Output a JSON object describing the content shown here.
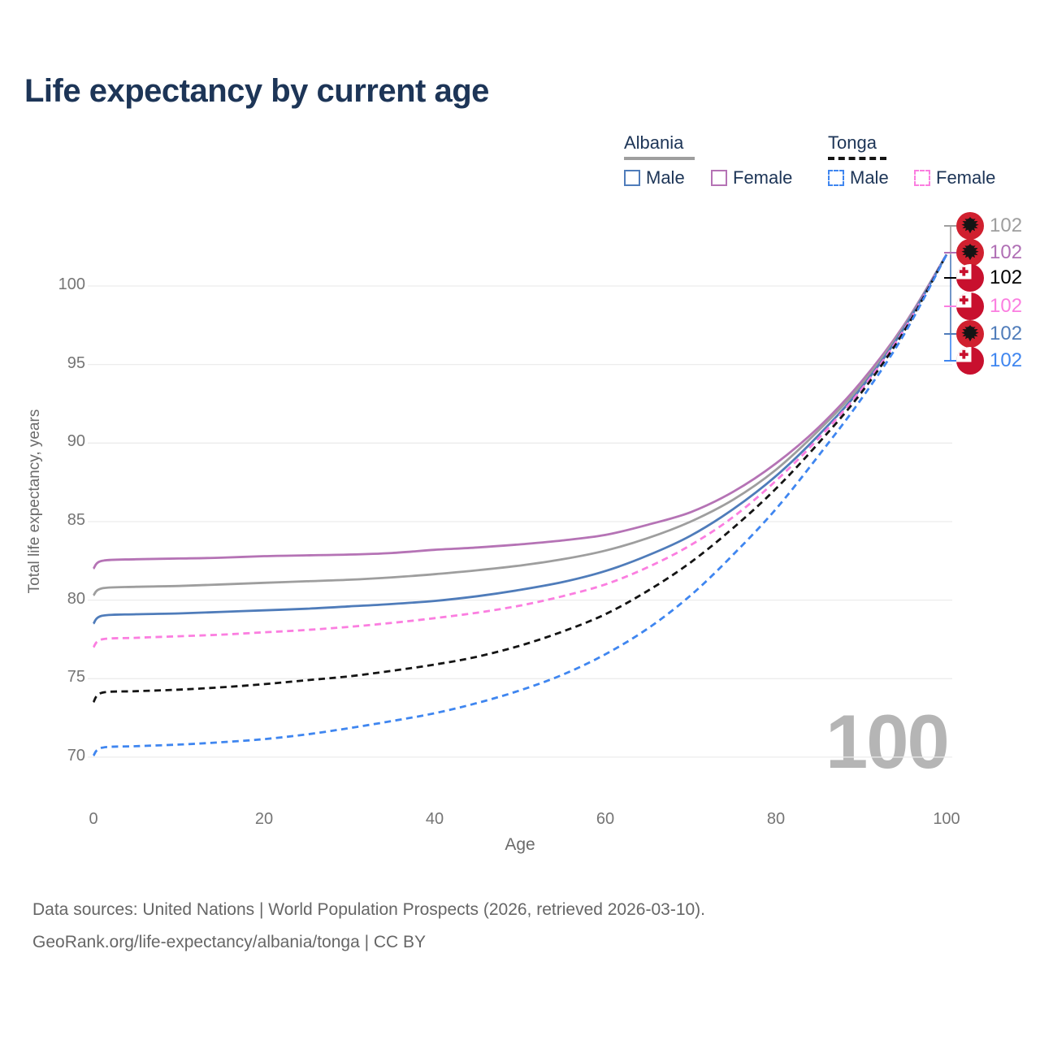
{
  "page": {
    "title": "Life expectancy by current age"
  },
  "legend": {
    "groups": [
      {
        "title": "Albania",
        "line_style": "solid",
        "line_color": "#9e9e9e",
        "items": [
          {
            "label": "Male",
            "color": "#4f7cba"
          },
          {
            "label": "Female",
            "color": "#b573b5"
          }
        ]
      },
      {
        "title": "Tonga",
        "line_style": "dashed",
        "line_color": "#141414",
        "items": [
          {
            "label": "Male",
            "color": "#3f86f0"
          },
          {
            "label": "Female",
            "color": "#fb7ee0"
          }
        ]
      }
    ]
  },
  "chart": {
    "y_axis_title": "Total life expectancy, years",
    "x_axis_title": "Age",
    "watermark": "100"
  },
  "chart_data": {
    "type": "line",
    "title": "Life expectancy by current age",
    "xlabel": "Age",
    "ylabel": "Total life expectancy, years",
    "xlim": [
      0,
      100
    ],
    "ylim": [
      68.5,
      103.5
    ],
    "x_ticks": [
      0,
      20,
      40,
      60,
      80,
      100
    ],
    "y_ticks": [
      70,
      75,
      80,
      85,
      90,
      95,
      100
    ],
    "grid": "horizontal",
    "x": [
      0,
      1,
      5,
      10,
      15,
      20,
      25,
      30,
      35,
      40,
      45,
      50,
      55,
      60,
      65,
      70,
      75,
      80,
      85,
      90,
      95,
      100
    ],
    "series": [
      {
        "name": "Albania Female",
        "country": "Albania",
        "sex": "Female",
        "color": "#b573b5",
        "dash": false,
        "values": [
          82.0,
          82.5,
          82.6,
          82.65,
          82.7,
          82.8,
          82.85,
          82.9,
          83.0,
          83.2,
          83.35,
          83.55,
          83.8,
          84.15,
          84.8,
          85.6,
          86.9,
          88.7,
          91.0,
          93.9,
          97.5,
          102
        ]
      },
      {
        "name": "Albania Both sexes",
        "country": "Albania",
        "sex": "All",
        "color": "#9e9e9e",
        "dash": false,
        "values": [
          80.3,
          80.75,
          80.85,
          80.9,
          81.0,
          81.1,
          81.2,
          81.3,
          81.45,
          81.65,
          81.9,
          82.2,
          82.6,
          83.15,
          83.95,
          85.0,
          86.4,
          88.3,
          90.8,
          93.7,
          97.4,
          102
        ]
      },
      {
        "name": "Albania Male",
        "country": "Albania",
        "sex": "Male",
        "color": "#4f7cba",
        "dash": false,
        "values": [
          78.5,
          79.0,
          79.1,
          79.15,
          79.25,
          79.35,
          79.45,
          79.6,
          79.75,
          79.95,
          80.25,
          80.65,
          81.15,
          81.85,
          82.85,
          84.1,
          85.8,
          87.9,
          90.5,
          93.5,
          97.3,
          102
        ]
      },
      {
        "name": "Tonga Female",
        "country": "Tonga",
        "sex": "Female",
        "color": "#fb7ee0",
        "dash": true,
        "values": [
          77.0,
          77.5,
          77.6,
          77.7,
          77.8,
          77.95,
          78.1,
          78.3,
          78.55,
          78.85,
          79.2,
          79.65,
          80.25,
          81.0,
          82.1,
          83.5,
          85.3,
          87.6,
          90.3,
          93.4,
          97.2,
          102
        ]
      },
      {
        "name": "Tonga Both sexes",
        "country": "Tonga",
        "sex": "All",
        "color": "#141414",
        "dash": true,
        "values": [
          73.5,
          74.1,
          74.2,
          74.3,
          74.45,
          74.65,
          74.9,
          75.15,
          75.5,
          75.9,
          76.4,
          77.1,
          78.0,
          79.1,
          80.6,
          82.4,
          84.6,
          87.1,
          90.0,
          93.2,
          97.1,
          102
        ]
      },
      {
        "name": "Tonga Male",
        "country": "Tonga",
        "sex": "Male",
        "color": "#3f86f0",
        "dash": true,
        "values": [
          70.1,
          70.6,
          70.7,
          70.8,
          70.95,
          71.15,
          71.45,
          71.85,
          72.3,
          72.8,
          73.45,
          74.25,
          75.25,
          76.55,
          78.2,
          80.3,
          82.9,
          85.8,
          89.2,
          92.8,
          96.9,
          102
        ]
      }
    ],
    "end_labels": [
      {
        "value": "102",
        "color": "#9e9e9e",
        "flag": "albania-flag",
        "series": "Albania Both sexes"
      },
      {
        "value": "102",
        "color": "#b06fb5",
        "flag": "albania-flag",
        "series": "Albania Female"
      },
      {
        "value": "102",
        "color": "#000000",
        "flag": "tonga-flag",
        "series": "Tonga Both sexes"
      },
      {
        "value": "102",
        "color": "#fb7ee0",
        "flag": "tonga-flag",
        "series": "Tonga Female"
      },
      {
        "value": "102",
        "color": "#4f7cba",
        "flag": "albania-flag",
        "series": "Albania Male"
      },
      {
        "value": "102",
        "color": "#3f86f0",
        "flag": "tonga-flag",
        "series": "Tonga Male"
      }
    ],
    "flag_colors": {
      "albania_red": "#d0202f",
      "tonga_red": "#c8102e",
      "eagle_black": "#141414"
    }
  },
  "footer": {
    "line1": "Data sources: United Nations | World Population Prospects (2026, retrieved 2026-03-10).",
    "line2": "GeoRank.org/life-expectancy/albania/tonga | CC BY"
  }
}
